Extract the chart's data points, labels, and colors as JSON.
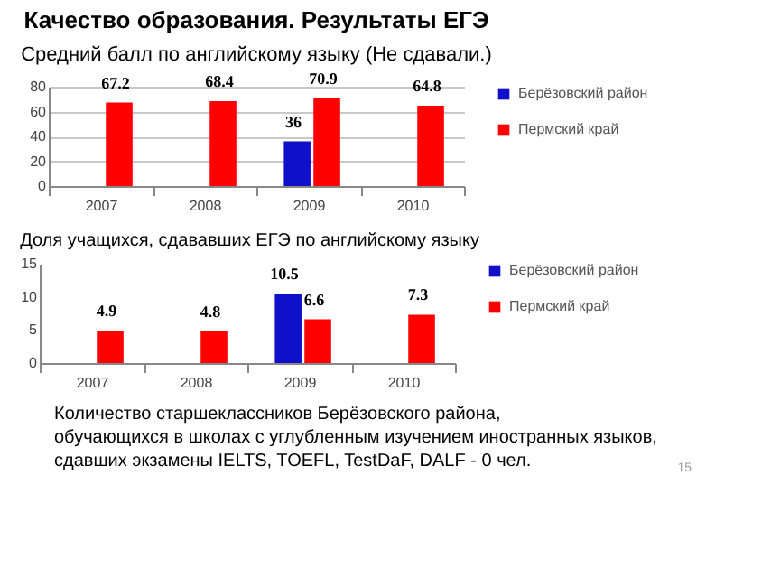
{
  "chart_data": [
    {
      "type": "bar",
      "title": "Качество образования.  Результаты ЕГЭ",
      "subtitle": "Средний балл по английскому языку (Не сдавали.)",
      "categories": [
        "2007",
        "2008",
        "2009",
        "2010"
      ],
      "series": [
        {
          "name": "Берёзовский район",
          "color": "#1010c8",
          "values": [
            null,
            null,
            36,
            null
          ]
        },
        {
          "name": "Пермский край",
          "color": "#ff0000",
          "values": [
            67.2,
            68.4,
            70.9,
            64.8
          ]
        }
      ],
      "ylim": [
        0,
        80
      ],
      "yticks": [
        0,
        20,
        40,
        60,
        80
      ],
      "grid": "y",
      "legend": "right",
      "data_labels": true
    },
    {
      "type": "bar",
      "title": "Доля учащихся, сдававших ЕГЭ по английскому языку",
      "categories": [
        "2007",
        "2008",
        "2009",
        "2010"
      ],
      "series": [
        {
          "name": "Берёзовский район",
          "color": "#1010c8",
          "values": [
            null,
            null,
            10.5,
            null
          ]
        },
        {
          "name": "Пермский край",
          "color": "#ff0000",
          "values": [
            4.9,
            4.8,
            6.6,
            7.3
          ]
        }
      ],
      "ylim": [
        0,
        15
      ],
      "yticks": [
        0,
        5,
        10,
        15
      ],
      "legend": "right",
      "data_labels": true,
      "annotations": [
        "Количество старшеклассников Берёзовского района,",
        "обучающихся в школах с углубленным изучением иностранных языков,",
        "сдавших экзамены IELTS, TOEFL, TestDaF, DALF   - 0 чел.",
        "15"
      ]
    }
  ]
}
